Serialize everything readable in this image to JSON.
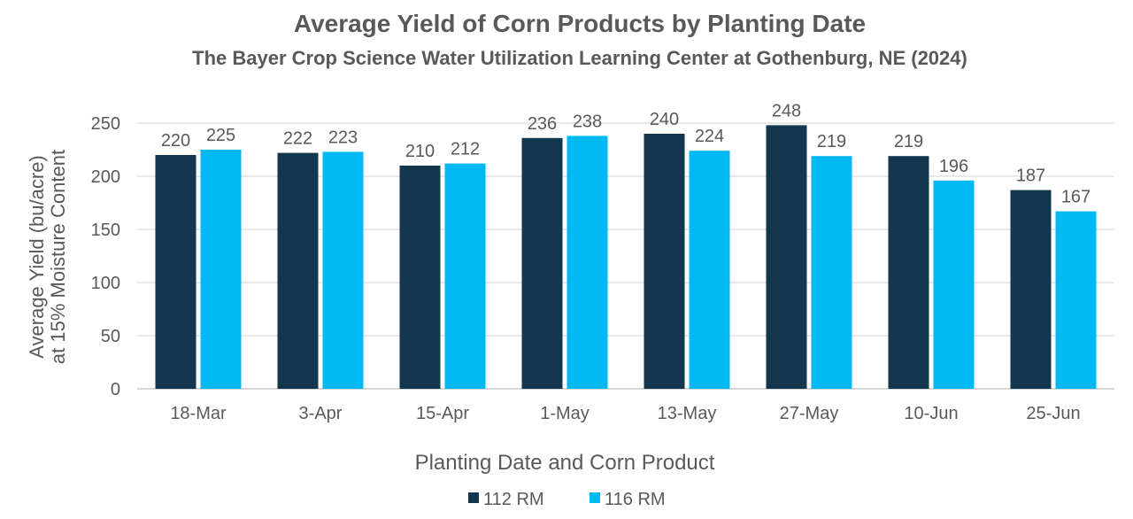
{
  "chart_data": {
    "type": "bar",
    "title": "Average Yield of Corn Products by Planting Date",
    "subtitle": "The Bayer Crop Science Water Utilization Learning Center at Gothenburg, NE (2024)",
    "xlabel": "Planting Date and Corn Product",
    "ylabel_line1": "Average Yield (bu/acre)",
    "ylabel_line2": "at 15% Moisture Content",
    "categories": [
      "18-Mar",
      "3-Apr",
      "15-Apr",
      "1-May",
      "13-May",
      "27-May",
      "10-Jun",
      "25-Jun"
    ],
    "series": [
      {
        "name": "112 RM",
        "color": "#12374f",
        "values": [
          220,
          222,
          210,
          236,
          240,
          248,
          219,
          187
        ]
      },
      {
        "name": "116 RM",
        "color": "#00b9f2",
        "values": [
          225,
          223,
          212,
          238,
          224,
          219,
          196,
          167
        ]
      }
    ],
    "ylim": [
      0,
      250
    ],
    "yticks": [
      0,
      50,
      100,
      150,
      200,
      250
    ],
    "gridlines": true,
    "legend_position": "bottom-center",
    "data_labels": true
  }
}
